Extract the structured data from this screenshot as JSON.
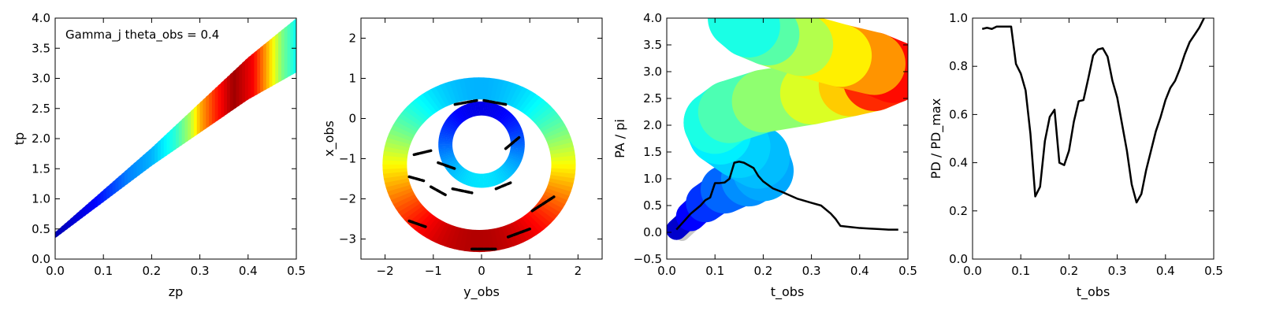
{
  "figure": {
    "panels": 4
  },
  "chart_data": [
    {
      "type": "scatter",
      "title": "",
      "annotation": "Gamma_j theta_obs = 0.4",
      "xlabel": "zp",
      "ylabel": "tp",
      "xlim": [
        0.0,
        0.5
      ],
      "ylim": [
        0.0,
        4.0
      ],
      "xticks": [
        0.0,
        0.1,
        0.2,
        0.3,
        0.4,
        0.5
      ],
      "yticks": [
        0.0,
        0.5,
        1.0,
        1.5,
        2.0,
        2.5,
        3.0,
        3.5,
        4.0
      ],
      "tick_decimals": [
        1,
        1
      ],
      "grid": false,
      "colormap": "jet",
      "band": {
        "lower_edge": [
          [
            0.0,
            0.35
          ],
          [
            0.1,
            0.95
          ],
          [
            0.2,
            1.55
          ],
          [
            0.3,
            2.1
          ],
          [
            0.4,
            2.65
          ],
          [
            0.5,
            3.1
          ]
        ],
        "upper_edge": [
          [
            0.0,
            0.45
          ],
          [
            0.1,
            1.15
          ],
          [
            0.2,
            1.85
          ],
          [
            0.3,
            2.6
          ],
          [
            0.4,
            3.35
          ],
          [
            0.5,
            4.0
          ]
        ],
        "color_profile": [
          [
            0.0,
            0.05
          ],
          [
            0.08,
            0.12
          ],
          [
            0.15,
            0.25
          ],
          [
            0.2,
            0.3
          ],
          [
            0.25,
            0.42
          ],
          [
            0.28,
            0.55
          ],
          [
            0.3,
            0.7
          ],
          [
            0.33,
            0.83
          ],
          [
            0.37,
            0.97
          ],
          [
            0.41,
            0.88
          ],
          [
            0.44,
            0.7
          ],
          [
            0.47,
            0.5
          ],
          [
            0.5,
            0.38
          ]
        ]
      }
    },
    {
      "type": "scatter",
      "title": "",
      "xlabel": "y_obs",
      "ylabel": "x_obs",
      "xlim": [
        -2.5,
        2.5
      ],
      "ylim": [
        -3.5,
        2.5
      ],
      "xticks": [
        -2,
        -1,
        0,
        1,
        2
      ],
      "yticks": [
        -3,
        -2,
        -1,
        0,
        1,
        2
      ],
      "tick_decimals": [
        0,
        0
      ],
      "grid": false,
      "colormap": "jet",
      "rings": [
        {
          "cx": -0.05,
          "cy": -1.15,
          "rx": 1.75,
          "ry": 1.9,
          "width": 0.55,
          "color_top": 0.3,
          "color_bottom": 0.95
        },
        {
          "cx": 0.0,
          "cy": -0.65,
          "rx": 0.75,
          "ry": 0.9,
          "width": 0.35,
          "color_top": 0.1,
          "color_bottom": 0.35
        }
      ],
      "black_dash_segments": [
        [
          [
            -1.05,
            -1.7
          ],
          [
            -0.75,
            -1.9
          ]
        ],
        [
          [
            -1.5,
            -2.55
          ],
          [
            -1.15,
            -2.7
          ]
        ],
        [
          [
            -0.6,
            -1.75
          ],
          [
            -0.2,
            -1.85
          ]
        ],
        [
          [
            0.3,
            -1.75
          ],
          [
            0.6,
            -1.6
          ]
        ],
        [
          [
            1.05,
            -2.3
          ],
          [
            1.5,
            -1.95
          ]
        ],
        [
          [
            0.55,
            -2.95
          ],
          [
            1.0,
            -2.75
          ]
        ],
        [
          [
            -0.2,
            -3.25
          ],
          [
            0.3,
            -3.25
          ]
        ],
        [
          [
            -1.4,
            -0.9
          ],
          [
            -1.05,
            -0.8
          ]
        ],
        [
          [
            -1.5,
            -1.45
          ],
          [
            -1.2,
            -1.55
          ]
        ],
        [
          [
            0.5,
            -0.75
          ],
          [
            0.8,
            -0.45
          ]
        ],
        [
          [
            -0.55,
            0.35
          ],
          [
            -0.1,
            0.45
          ]
        ],
        [
          [
            0.05,
            0.45
          ],
          [
            0.5,
            0.35
          ]
        ],
        [
          [
            -0.9,
            -1.1
          ],
          [
            -0.55,
            -1.25
          ]
        ]
      ]
    },
    {
      "type": "line",
      "title": "",
      "xlabel": "t_obs",
      "ylabel": "PA / pi",
      "xlim": [
        0.0,
        0.5
      ],
      "ylim": [
        -0.5,
        4.0
      ],
      "xticks": [
        0.0,
        0.1,
        0.2,
        0.3,
        0.4,
        0.5
      ],
      "yticks": [
        -0.5,
        0.0,
        0.5,
        1.0,
        1.5,
        2.0,
        2.5,
        3.0,
        3.5,
        4.0
      ],
      "tick_decimals": [
        1,
        1
      ],
      "grid": false,
      "colormap": "jet",
      "band_center": [
        [
          0.02,
          0.05
        ],
        [
          0.05,
          0.3
        ],
        [
          0.08,
          0.55
        ],
        [
          0.12,
          0.8
        ],
        [
          0.17,
          1.0
        ],
        [
          0.2,
          1.15
        ],
        [
          0.19,
          1.4
        ],
        [
          0.15,
          1.6
        ],
        [
          0.11,
          1.85
        ],
        [
          0.1,
          2.05
        ],
        [
          0.13,
          2.25
        ],
        [
          0.2,
          2.45
        ],
        [
          0.3,
          2.6
        ],
        [
          0.38,
          2.75
        ],
        [
          0.43,
          2.85
        ],
        [
          0.47,
          3.0
        ],
        [
          0.43,
          3.15
        ],
        [
          0.36,
          3.3
        ],
        [
          0.28,
          3.5
        ],
        [
          0.21,
          3.7
        ],
        [
          0.17,
          3.85
        ],
        [
          0.15,
          4.0
        ]
      ],
      "band_color": [
        0.05,
        0.1,
        0.15,
        0.2,
        0.25,
        0.28,
        0.3,
        0.32,
        0.34,
        0.38,
        0.42,
        0.48,
        0.55,
        0.63,
        0.72,
        0.95,
        0.78,
        0.68,
        0.6,
        0.5,
        0.42,
        0.38
      ],
      "band_width": 0.13,
      "series": [
        {
          "color": "#000000",
          "x": [
            0.02,
            0.03,
            0.05,
            0.07,
            0.08,
            0.09,
            0.1,
            0.11,
            0.12,
            0.13,
            0.14,
            0.15,
            0.16,
            0.17,
            0.18,
            0.19,
            0.2,
            0.22,
            0.24,
            0.27,
            0.3,
            0.32,
            0.34,
            0.35,
            0.36,
            0.38,
            0.4,
            0.42,
            0.44,
            0.46,
            0.48
          ],
          "y": [
            0.05,
            0.15,
            0.35,
            0.5,
            0.6,
            0.65,
            0.92,
            0.92,
            0.93,
            1.0,
            1.3,
            1.32,
            1.3,
            1.25,
            1.2,
            1.05,
            0.95,
            0.82,
            0.75,
            0.63,
            0.55,
            0.5,
            0.35,
            0.25,
            0.12,
            0.1,
            0.08,
            0.07,
            0.06,
            0.05,
            0.05
          ]
        }
      ]
    },
    {
      "type": "line",
      "title": "",
      "xlabel": "t_obs",
      "ylabel": "PD / PD_max",
      "xlim": [
        0.0,
        0.5
      ],
      "ylim": [
        0.0,
        1.0
      ],
      "xticks": [
        0.0,
        0.1,
        0.2,
        0.3,
        0.4,
        0.5
      ],
      "yticks": [
        0.0,
        0.2,
        0.4,
        0.6,
        0.8,
        1.0
      ],
      "tick_decimals": [
        1,
        1
      ],
      "grid": false,
      "series": [
        {
          "color": "#000000",
          "x": [
            0.02,
            0.03,
            0.04,
            0.05,
            0.06,
            0.07,
            0.08,
            0.09,
            0.1,
            0.11,
            0.12,
            0.13,
            0.14,
            0.15,
            0.16,
            0.17,
            0.18,
            0.19,
            0.2,
            0.21,
            0.22,
            0.23,
            0.24,
            0.25,
            0.26,
            0.27,
            0.28,
            0.29,
            0.3,
            0.31,
            0.32,
            0.33,
            0.34,
            0.35,
            0.36,
            0.37,
            0.38,
            0.39,
            0.4,
            0.41,
            0.42,
            0.43,
            0.44,
            0.45,
            0.46,
            0.47,
            0.48
          ],
          "y": [
            0.955,
            0.96,
            0.955,
            0.965,
            0.965,
            0.965,
            0.965,
            0.81,
            0.77,
            0.7,
            0.52,
            0.26,
            0.3,
            0.49,
            0.59,
            0.62,
            0.4,
            0.39,
            0.45,
            0.57,
            0.655,
            0.66,
            0.75,
            0.845,
            0.87,
            0.875,
            0.84,
            0.74,
            0.67,
            0.56,
            0.45,
            0.31,
            0.235,
            0.27,
            0.37,
            0.45,
            0.53,
            0.59,
            0.66,
            0.71,
            0.74,
            0.79,
            0.85,
            0.9,
            0.93,
            0.96,
            1.0
          ]
        }
      ]
    }
  ]
}
